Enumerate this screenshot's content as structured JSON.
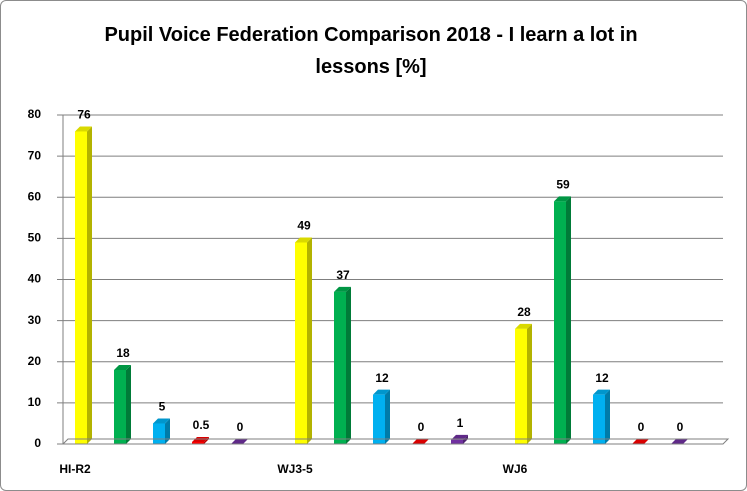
{
  "chart_data": {
    "type": "bar3d",
    "title": "Pupil Voice Federation Comparison 2018 - I learn a lot in lessons [%]",
    "categories": [
      "HI-R2",
      "WJ3-5",
      "WJ6"
    ],
    "series": [
      {
        "color": "#ffff00",
        "values": [
          76,
          49,
          28
        ]
      },
      {
        "color": "#00b050",
        "values": [
          18,
          37,
          59
        ]
      },
      {
        "color": "#00b0f0",
        "values": [
          5,
          12,
          12
        ]
      },
      {
        "color": "#ff0000",
        "values": [
          0.5,
          0,
          0
        ]
      },
      {
        "color": "#7030a0",
        "values": [
          0,
          1,
          0
        ]
      }
    ],
    "ylim": [
      0,
      80
    ],
    "yticks": [
      0,
      10,
      20,
      30,
      40,
      50,
      60,
      70,
      80
    ],
    "grid": true
  }
}
